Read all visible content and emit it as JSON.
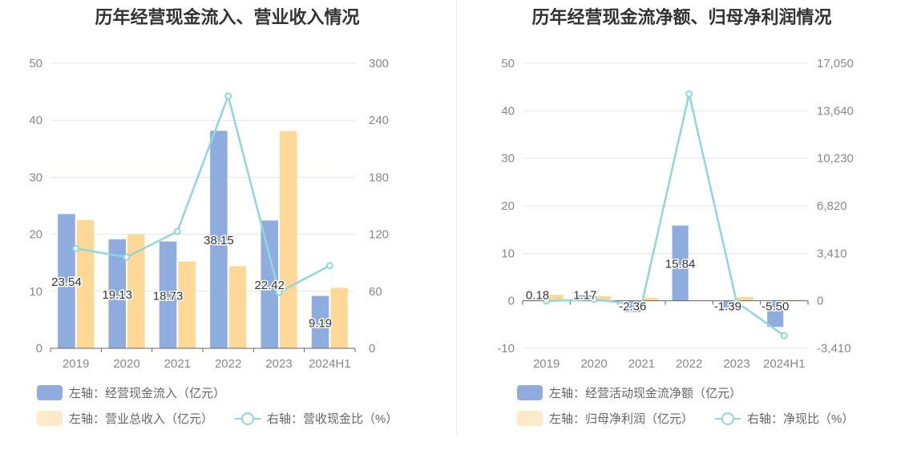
{
  "colors": {
    "bar_primary": "#8eadde",
    "bar_secondary": "#ffd898",
    "line": "#90d6dc",
    "legend_secondary": "#ffe9c8"
  },
  "chart_data": [
    {
      "type": "bar",
      "title": "历年经营现金流入、营业收入情况",
      "categories": [
        "2019",
        "2020",
        "2021",
        "2022",
        "2023",
        "2024H1"
      ],
      "left_axis": {
        "ticks": [
          "0",
          "10",
          "20",
          "30",
          "40",
          "50"
        ],
        "range": [
          0,
          50
        ]
      },
      "right_axis": {
        "ticks": [
          "0",
          "60",
          "120",
          "180",
          "240",
          "300"
        ],
        "range": [
          0,
          300
        ]
      },
      "series": [
        {
          "name": "左轴：经营现金流入（亿元）",
          "type": "bar",
          "axis": "left",
          "values": [
            23.54,
            19.13,
            18.73,
            38.15,
            22.42,
            9.19
          ],
          "labels": [
            "23.54",
            "19.13",
            "18.73",
            "38.15",
            "22.42",
            "9.19"
          ]
        },
        {
          "name": "左轴：营业总收入（亿元）",
          "type": "bar",
          "axis": "left",
          "values": [
            22.5,
            20.0,
            15.2,
            14.4,
            38.1,
            10.6
          ]
        },
        {
          "name": "右轴：营收现金比（%）",
          "type": "line",
          "axis": "right",
          "values": [
            105.0,
            96.0,
            123.0,
            265.5,
            58.9,
            87.0
          ]
        }
      ],
      "legend": {
        "position": "bottom"
      },
      "grid": true
    },
    {
      "type": "bar",
      "title": "历年经营现金流净额、归母净利润情况",
      "categories": [
        "2019",
        "2020",
        "2021",
        "2022",
        "2023",
        "2024H1"
      ],
      "left_axis": {
        "ticks": [
          "-10",
          "0",
          "10",
          "20",
          "30",
          "40",
          "50"
        ],
        "range": [
          -10,
          50
        ]
      },
      "right_axis": {
        "ticks": [
          "-3,410",
          "0",
          "3,410",
          "6,820",
          "10,230",
          "13,640",
          "17,050"
        ],
        "range": [
          -3410,
          17050
        ]
      },
      "series": [
        {
          "name": "左轴：经营活动现金流净额（亿元）",
          "type": "bar",
          "axis": "left",
          "values": [
            0.18,
            1.17,
            -2.36,
            15.84,
            -1.39,
            -5.5
          ],
          "labels": [
            "0.18",
            "1.17",
            "-2.36",
            "15.84",
            "-1.39",
            "-5.50"
          ]
        },
        {
          "name": "左轴：归母净利润（亿元）",
          "type": "bar",
          "axis": "left",
          "values": [
            1.3,
            1.0,
            0.6,
            0.1,
            0.8,
            0.2
          ]
        },
        {
          "name": "右轴：净现比（%）",
          "type": "line",
          "axis": "right",
          "values": [
            -20,
            100,
            -300,
            14850,
            -100,
            -2500
          ]
        }
      ],
      "legend": {
        "position": "bottom"
      },
      "grid": true
    }
  ]
}
